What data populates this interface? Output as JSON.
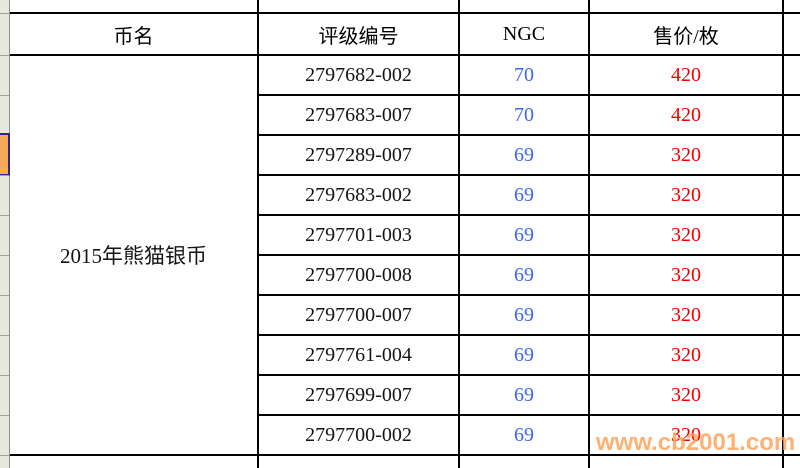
{
  "table": {
    "headers": {
      "coin_name": "币名",
      "grading_number": "评级编号",
      "ngc": "NGC",
      "price": "售价/枚"
    },
    "coin_name": "2015年熊猫银币",
    "rows": [
      {
        "grading_number": "2797682-002",
        "ngc": "70",
        "price": "420"
      },
      {
        "grading_number": "2797683-007",
        "ngc": "70",
        "price": "420"
      },
      {
        "grading_number": "2797289-007",
        "ngc": "69",
        "price": "320"
      },
      {
        "grading_number": "2797683-002",
        "ngc": "69",
        "price": "320"
      },
      {
        "grading_number": "2797701-003",
        "ngc": "69",
        "price": "320"
      },
      {
        "grading_number": "2797700-008",
        "ngc": "69",
        "price": "320"
      },
      {
        "grading_number": "2797700-007",
        "ngc": "69",
        "price": "320"
      },
      {
        "grading_number": "2797761-004",
        "ngc": "69",
        "price": "320"
      },
      {
        "grading_number": "2797699-007",
        "ngc": "69",
        "price": "320"
      },
      {
        "grading_number": "2797700-002",
        "ngc": "69",
        "price": "320"
      }
    ]
  },
  "watermark": {
    "text": "www.cb2001.com"
  },
  "colors": {
    "ngc_text": "#3a66ec",
    "price_text": "#f10000",
    "grid_border": "#000000",
    "watermark": "#ffa055",
    "gutter_bg": "#e9e8dc",
    "gutter_cell_fill": "#faa85a",
    "gutter_cell_border": "#2b2b85"
  }
}
